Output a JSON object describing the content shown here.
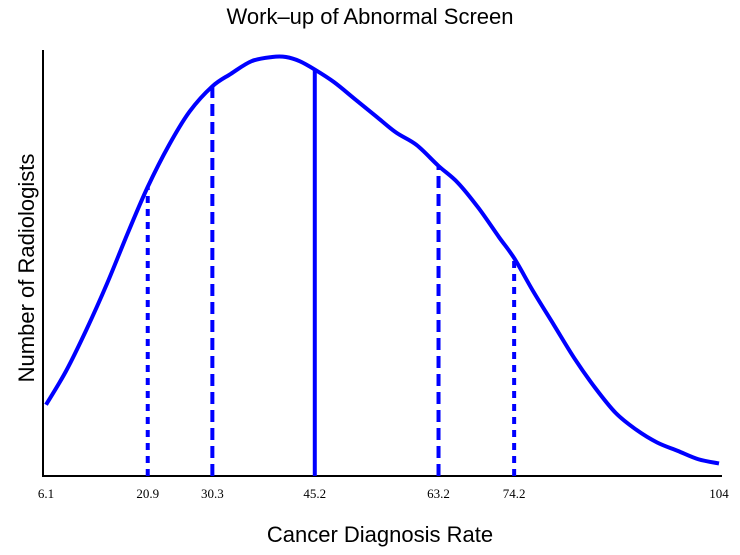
{
  "chart_data": {
    "type": "line",
    "title": "Work–up of Abnormal Screen",
    "xlabel": "Cancer Diagnosis Rate",
    "ylabel": "Number of Radiologists",
    "xlim": [
      6.1,
      104
    ],
    "ylim": [
      0,
      1
    ],
    "grid": false,
    "x_ticks": [
      "6.1",
      "20.9",
      "30.3",
      "45.2",
      "63.2",
      "74.2",
      "104"
    ],
    "series": [
      {
        "color": "#0000ff",
        "points": [
          [
            6.1,
            0.17
          ],
          [
            9,
            0.25
          ],
          [
            12,
            0.35
          ],
          [
            15,
            0.46
          ],
          [
            18,
            0.58
          ],
          [
            20.9,
            0.69
          ],
          [
            24,
            0.79
          ],
          [
            27,
            0.87
          ],
          [
            30.3,
            0.93
          ],
          [
            33,
            0.96
          ],
          [
            36,
            0.99
          ],
          [
            39,
            1.0
          ],
          [
            41,
            1.0
          ],
          [
            43,
            0.99
          ],
          [
            45.2,
            0.97
          ],
          [
            48,
            0.94
          ],
          [
            51,
            0.9
          ],
          [
            54,
            0.86
          ],
          [
            57,
            0.82
          ],
          [
            60,
            0.79
          ],
          [
            63.2,
            0.74
          ],
          [
            66,
            0.7
          ],
          [
            69,
            0.64
          ],
          [
            72,
            0.57
          ],
          [
            74.2,
            0.52
          ],
          [
            77,
            0.44
          ],
          [
            80,
            0.36
          ],
          [
            83,
            0.28
          ],
          [
            86,
            0.21
          ],
          [
            89,
            0.15
          ],
          [
            92,
            0.11
          ],
          [
            95,
            0.08
          ],
          [
            98,
            0.06
          ],
          [
            101,
            0.04
          ],
          [
            104,
            0.03
          ]
        ]
      }
    ],
    "reference_lines": [
      {
        "x": 20.9,
        "height": 0.69,
        "style": "dotted"
      },
      {
        "x": 30.3,
        "height": 0.93,
        "style": "dashed"
      },
      {
        "x": 45.2,
        "height": 0.97,
        "style": "solid"
      },
      {
        "x": 63.2,
        "height": 0.74,
        "style": "dashed"
      },
      {
        "x": 74.2,
        "height": 0.52,
        "style": "dotted"
      }
    ]
  }
}
